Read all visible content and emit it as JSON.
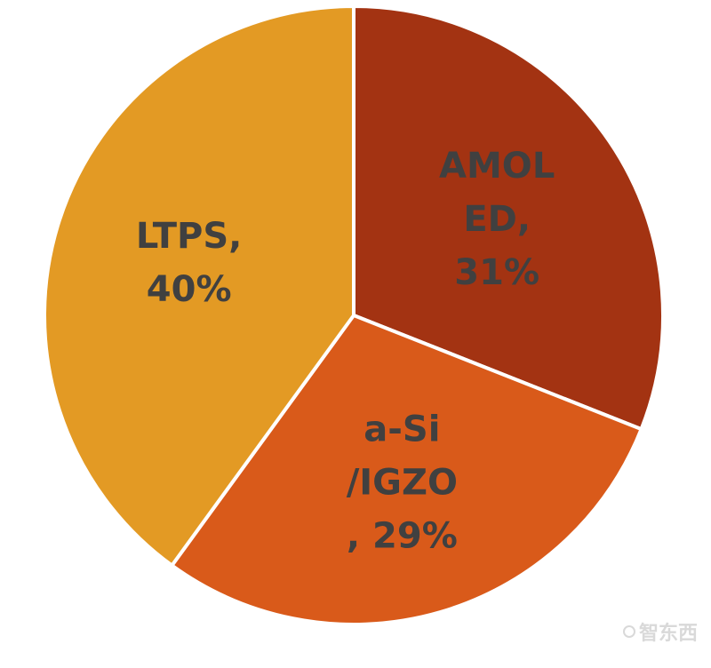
{
  "chart_data": {
    "type": "pie",
    "title": "",
    "series": [
      {
        "name": "",
        "categories": [
          "AMOLED",
          "a-Si/IGZO",
          "LTPS"
        ],
        "values": [
          31,
          29,
          40
        ],
        "colors": [
          "#a33312",
          "#d95a1a",
          "#e39a24"
        ]
      }
    ],
    "labels": [
      {
        "category": "AMOLED",
        "lines": [
          "AMOL",
          "ED,",
          "31%"
        ]
      },
      {
        "category": "a-Si/IGZO",
        "lines": [
          "a-Si",
          "/IGZO",
          ", 29%"
        ]
      },
      {
        "category": "LTPS",
        "lines": [
          "LTPS,",
          "40%"
        ]
      }
    ],
    "label_color": "#404040",
    "slice_border_color": "#ffffff",
    "legend": "none",
    "start_angle_deg": 0,
    "direction": "clockwise"
  },
  "watermark": {
    "text": "智东西",
    "color": "#d9d9d9"
  }
}
